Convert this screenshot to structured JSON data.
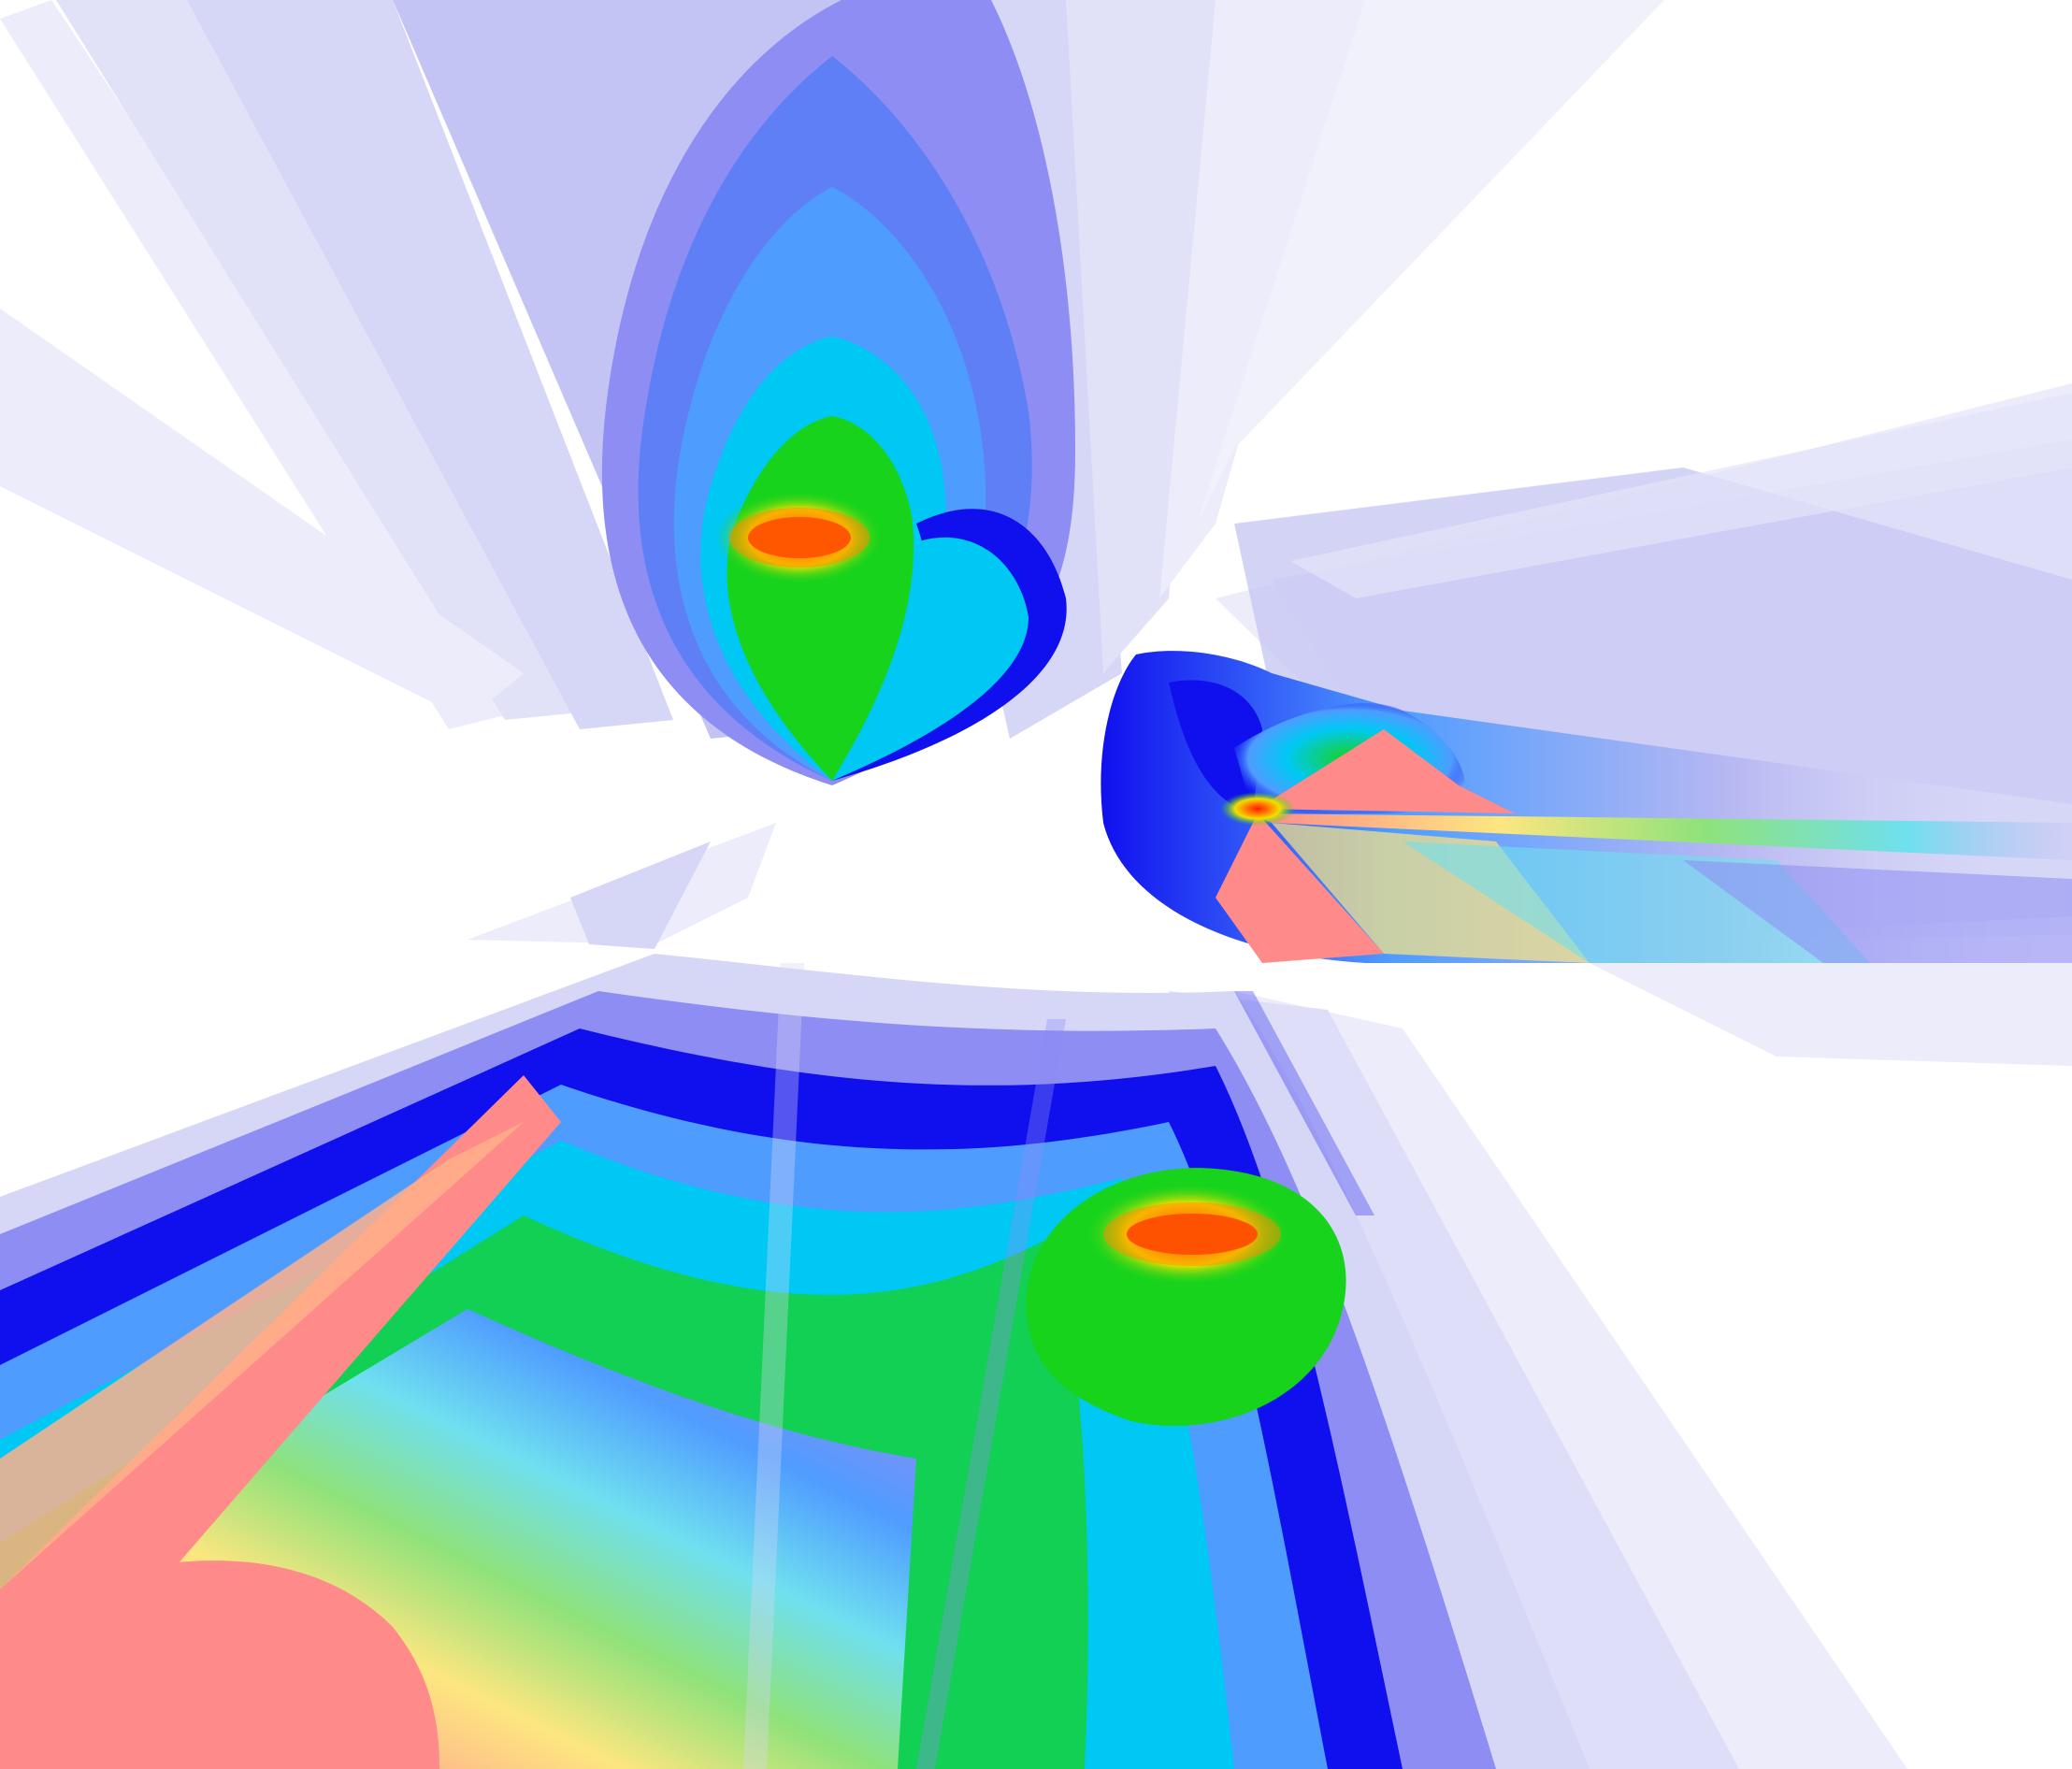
{
  "colors": {
    "background": "#ffffff",
    "lavender_pale": "#ececfb",
    "lavender_light": "#d6d6f7",
    "lavender": "#b8b8f2",
    "periwinkle": "#8d8df4",
    "blue": "#1010ee",
    "sky": "#4f9cff",
    "cyan": "#00c8f5",
    "green": "#17d31c",
    "yellow": "#f0e000",
    "orange": "#ff8a00",
    "red": "#ff1a00",
    "salmon": "#ff8a8a",
    "pale_yellow": "#fde680",
    "pale_green": "#8fe27a"
  }
}
